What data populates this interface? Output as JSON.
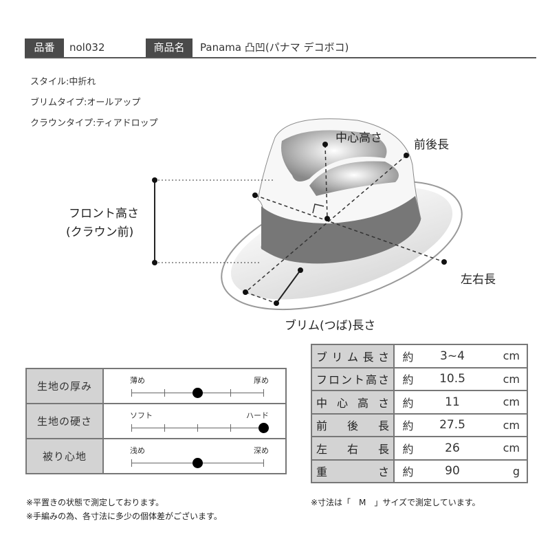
{
  "header": {
    "code_label": "品番",
    "code": "nol032",
    "name_label": "商品名",
    "name": "Panama 凸凹(パナマ デコボコ)"
  },
  "specs": [
    "スタイル:中折れ",
    "ブリムタイプ:オールアップ",
    "クラウンタイプ:ティアドロップ"
  ],
  "diagram": {
    "center_height": "中心高さ",
    "front_back": "前後長",
    "front_height_1": "フロント高さ",
    "front_height_2": "(クラウン前)",
    "left_right": "左右長",
    "brim": "ブリム(つば)長さ"
  },
  "feel": [
    {
      "label": "生地の厚み",
      "left": "薄め",
      "right": "厚め",
      "value": 0.5,
      "ticks": 5
    },
    {
      "label": "生地の硬さ",
      "left": "ソフト",
      "right": "ハード",
      "value": 1.0,
      "ticks": 5
    },
    {
      "label": "被り心地",
      "left": "浅め",
      "right": "深め",
      "value": 0.5,
      "ticks": 2
    }
  ],
  "sizes": [
    {
      "label": "ブリム長さ",
      "approx": "約",
      "value": "3~4",
      "unit": "cm"
    },
    {
      "label": "フロント高さ",
      "approx": "約",
      "value": "10.5",
      "unit": "cm"
    },
    {
      "label": "中心高さ",
      "approx": "約",
      "value": "11",
      "unit": "cm"
    },
    {
      "label": "前後長",
      "approx": "約",
      "value": "27.5",
      "unit": "cm"
    },
    {
      "label": "左右長",
      "approx": "約",
      "value": "26",
      "unit": "cm"
    },
    {
      "label": "重さ",
      "approx": "約",
      "value": "90",
      "unit": "g"
    }
  ],
  "notes": {
    "n1": "※平置きの状態で測定しております。",
    "n2": "※手編みの為、各寸法に多少の個体差がございます。",
    "n3": "※寸法は「　M　」サイズで測定しています。"
  }
}
